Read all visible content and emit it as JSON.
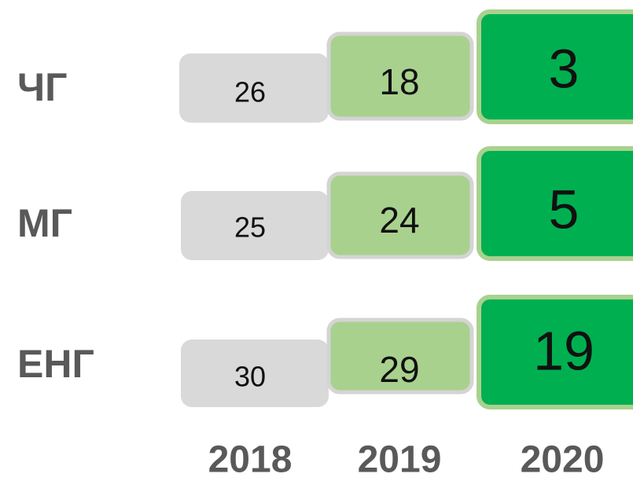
{
  "table": {
    "columns": [
      "2018",
      "2019",
      "2020"
    ],
    "rows": [
      {
        "label": "ЧГ",
        "values": [
          26,
          18,
          3
        ]
      },
      {
        "label": "МГ",
        "values": [
          25,
          24,
          5
        ]
      },
      {
        "label": "ЕНГ",
        "values": [
          30,
          29,
          19
        ]
      }
    ]
  }
}
